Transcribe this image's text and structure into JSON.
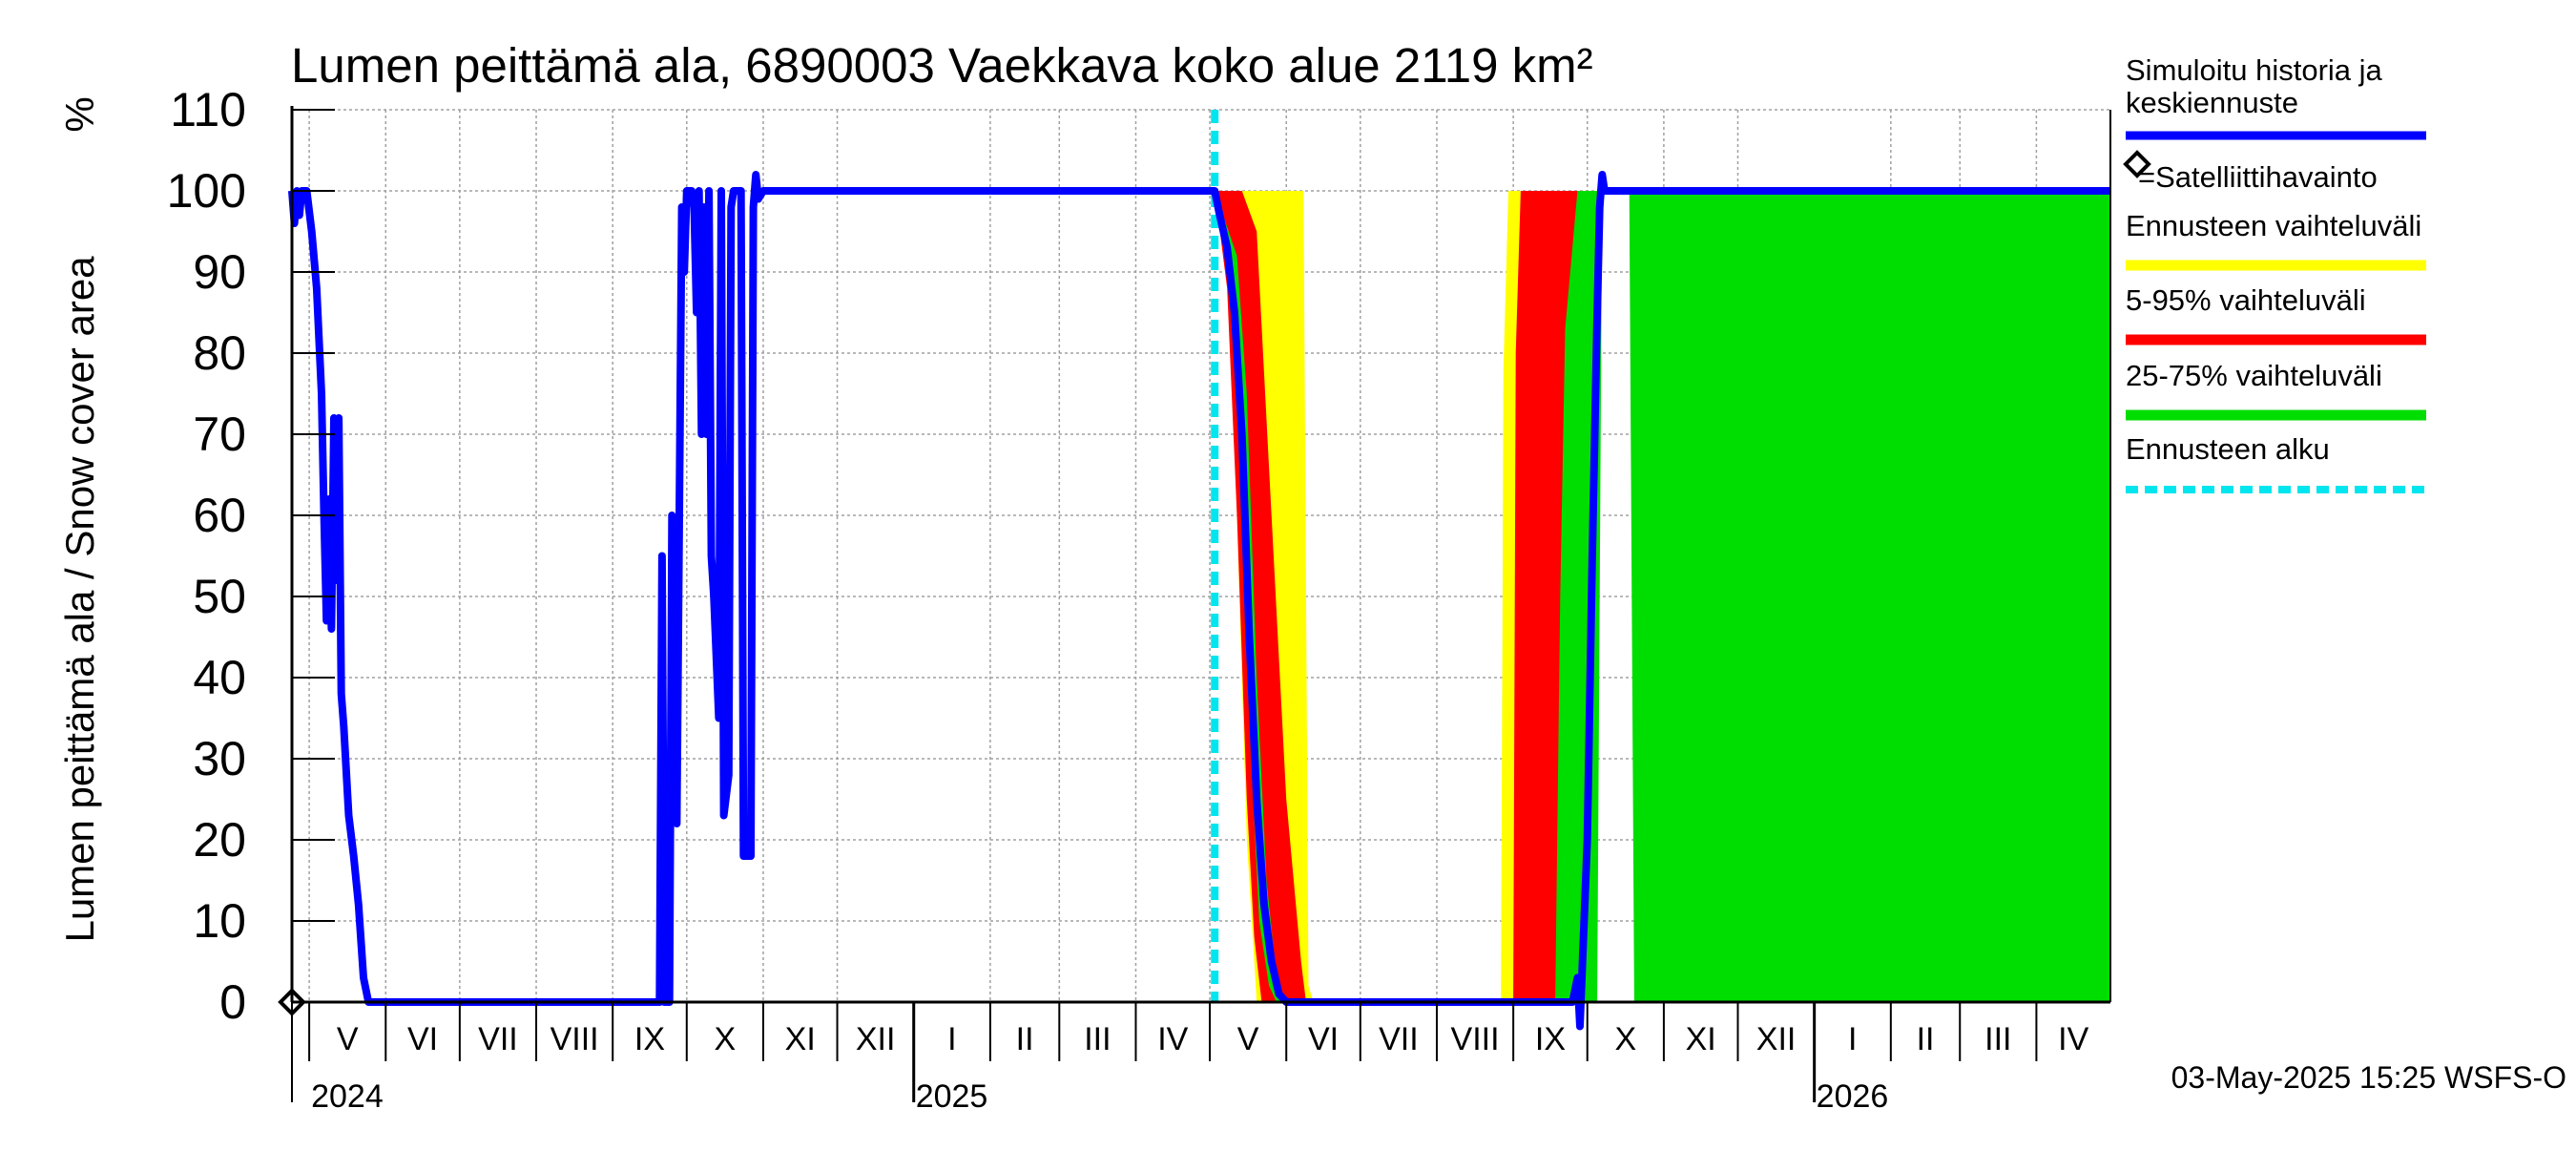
{
  "chart_data": {
    "type": "area",
    "title": "Lumen peittämä ala, 6890003 Vaekkava koko alue 2119 km²",
    "ylabel": "Lumen peittämä ala / Snow cover area",
    "yunit": "%",
    "ylim": [
      0,
      110
    ],
    "yticks": [
      0,
      10,
      20,
      30,
      40,
      50,
      60,
      70,
      80,
      90,
      100,
      110
    ],
    "xlim": [
      "2024-04-24",
      "2026-05-01"
    ],
    "grid": true,
    "month_labels": [
      {
        "label": "V",
        "date": "2024-05-01"
      },
      {
        "label": "VI",
        "date": "2024-06-01"
      },
      {
        "label": "VII",
        "date": "2024-07-01"
      },
      {
        "label": "VIII",
        "date": "2024-08-01"
      },
      {
        "label": "IX",
        "date": "2024-09-01"
      },
      {
        "label": "X",
        "date": "2024-10-01"
      },
      {
        "label": "XI",
        "date": "2024-11-01"
      },
      {
        "label": "XII",
        "date": "2024-12-01"
      },
      {
        "label": "I",
        "date": "2025-01-01"
      },
      {
        "label": "II",
        "date": "2025-02-01"
      },
      {
        "label": "III",
        "date": "2025-03-01"
      },
      {
        "label": "IV",
        "date": "2025-04-01"
      },
      {
        "label": "V",
        "date": "2025-05-01"
      },
      {
        "label": "VI",
        "date": "2025-06-01"
      },
      {
        "label": "VII",
        "date": "2025-07-01"
      },
      {
        "label": "VIII",
        "date": "2025-08-01"
      },
      {
        "label": "IX",
        "date": "2025-09-01"
      },
      {
        "label": "X",
        "date": "2025-10-01"
      },
      {
        "label": "XI",
        "date": "2025-11-01"
      },
      {
        "label": "XII",
        "date": "2025-12-01"
      },
      {
        "label": "I",
        "date": "2026-01-01"
      },
      {
        "label": "II",
        "date": "2026-02-01"
      },
      {
        "label": "III",
        "date": "2026-03-01"
      },
      {
        "label": "IV",
        "date": "2026-04-01"
      }
    ],
    "year_labels": [
      {
        "label": "2024",
        "date": "2024-05-01"
      },
      {
        "label": "2025",
        "date": "2025-01-01"
      },
      {
        "label": "2026",
        "date": "2026-01-01"
      }
    ],
    "forecast_start": "2025-05-03",
    "legend": [
      {
        "label": "Simuloitu historia ja keskiennuste",
        "color": "#0000ff",
        "style": "line"
      },
      {
        "label": "=Satelliittihavainto",
        "color": "#000000",
        "style": "diamond"
      },
      {
        "label": "Ennusteen vaihteluväli",
        "color": "#ffff00",
        "style": "band"
      },
      {
        "label": "5-95% vaihteluväli",
        "color": "#ff0000",
        "style": "band"
      },
      {
        "label": "25-75% vaihteluväli",
        "color": "#00dd00",
        "style": "band"
      },
      {
        "label": "Ennusteen alku",
        "color": "#00e5ee",
        "style": "dashed"
      }
    ],
    "legend_position": "right",
    "footer": "03-May-2025 15:25 WSFS-O",
    "satellite_observations": [
      {
        "date": "2024-04-24",
        "value": 0
      }
    ],
    "series": [
      {
        "name": "Simuloitu historia ja keskiennuste",
        "color": "#0000ff",
        "points": [
          [
            "2024-04-24",
            100
          ],
          [
            "2024-04-25",
            96
          ],
          [
            "2024-04-26",
            100
          ],
          [
            "2024-04-27",
            97
          ],
          [
            "2024-04-28",
            100
          ],
          [
            "2024-04-30",
            100
          ],
          [
            "2024-05-02",
            95
          ],
          [
            "2024-05-04",
            88
          ],
          [
            "2024-05-06",
            75
          ],
          [
            "2024-05-07",
            60
          ],
          [
            "2024-05-08",
            47
          ],
          [
            "2024-05-09",
            62
          ],
          [
            "2024-05-10",
            46
          ],
          [
            "2024-05-11",
            72
          ],
          [
            "2024-05-12",
            52
          ],
          [
            "2024-05-13",
            72
          ],
          [
            "2024-05-14",
            38
          ],
          [
            "2024-05-15",
            34
          ],
          [
            "2024-05-17",
            23
          ],
          [
            "2024-05-19",
            18
          ],
          [
            "2024-05-21",
            12
          ],
          [
            "2024-05-23",
            3
          ],
          [
            "2024-05-25",
            0
          ],
          [
            "2024-09-20",
            0
          ],
          [
            "2024-09-21",
            55
          ],
          [
            "2024-09-22",
            0
          ],
          [
            "2024-09-24",
            0
          ],
          [
            "2024-09-25",
            60
          ],
          [
            "2024-09-26",
            58
          ],
          [
            "2024-09-27",
            22
          ],
          [
            "2024-09-28",
            60
          ],
          [
            "2024-09-29",
            98
          ],
          [
            "2024-09-30",
            90
          ],
          [
            "2024-10-01",
            100
          ],
          [
            "2024-10-03",
            100
          ],
          [
            "2024-10-04",
            98
          ],
          [
            "2024-10-05",
            85
          ],
          [
            "2024-10-06",
            100
          ],
          [
            "2024-10-07",
            70
          ],
          [
            "2024-10-08",
            98
          ],
          [
            "2024-10-09",
            70
          ],
          [
            "2024-10-10",
            100
          ],
          [
            "2024-10-11",
            55
          ],
          [
            "2024-10-12",
            50
          ],
          [
            "2024-10-14",
            35
          ],
          [
            "2024-10-15",
            100
          ],
          [
            "2024-10-16",
            23
          ],
          [
            "2024-10-18",
            28
          ],
          [
            "2024-10-19",
            98
          ],
          [
            "2024-10-20",
            100
          ],
          [
            "2024-10-23",
            100
          ],
          [
            "2024-10-24",
            18
          ],
          [
            "2024-10-27",
            18
          ],
          [
            "2024-10-28",
            98
          ],
          [
            "2024-10-29",
            102
          ],
          [
            "2024-10-30",
            99
          ],
          [
            "2024-11-01",
            100
          ],
          [
            "2025-05-03",
            100
          ],
          [
            "2025-05-05",
            97
          ],
          [
            "2025-05-08",
            93
          ],
          [
            "2025-05-11",
            85
          ],
          [
            "2025-05-14",
            70
          ],
          [
            "2025-05-17",
            45
          ],
          [
            "2025-05-20",
            25
          ],
          [
            "2025-05-23",
            12
          ],
          [
            "2025-05-26",
            5
          ],
          [
            "2025-05-29",
            1
          ],
          [
            "2025-06-01",
            0
          ],
          [
            "2025-09-25",
            0
          ],
          [
            "2025-09-27",
            3
          ],
          [
            "2025-09-28",
            -3
          ],
          [
            "2025-10-01",
            20
          ],
          [
            "2025-10-03",
            55
          ],
          [
            "2025-10-05",
            85
          ],
          [
            "2025-10-06",
            98
          ],
          [
            "2025-10-07",
            102
          ],
          [
            "2025-10-08",
            100
          ],
          [
            "2026-05-01",
            100
          ]
        ]
      },
      {
        "name": "Ennusteen vaihteluväli",
        "color": "#ffff00",
        "upper": [
          [
            "2025-05-03",
            100
          ],
          [
            "2025-06-08",
            100
          ],
          [
            "2025-06-10",
            2
          ],
          [
            "2025-06-12",
            0
          ],
          [
            "2025-08-27",
            0
          ],
          [
            "2025-08-28",
            78
          ],
          [
            "2025-08-30",
            100
          ],
          [
            "2025-11-10",
            100
          ],
          [
            "2025-11-12",
            0
          ],
          [
            "2026-04-02",
            0
          ],
          [
            "2026-04-03",
            100
          ],
          [
            "2026-05-01",
            100
          ]
        ],
        "lower": [
          [
            "2025-05-03",
            100
          ],
          [
            "2025-05-08",
            92
          ],
          [
            "2025-05-12",
            60
          ],
          [
            "2025-05-16",
            20
          ],
          [
            "2025-05-20",
            0
          ],
          [
            "2025-10-04",
            0
          ],
          [
            "2025-10-07",
            100
          ],
          [
            "2026-04-10",
            100
          ],
          [
            "2026-04-20",
            90
          ],
          [
            "2026-04-30",
            50
          ],
          [
            "2026-05-01",
            40
          ]
        ]
      },
      {
        "name": "5-95% vaihteluväli",
        "color": "#ff0000",
        "upper": [
          [
            "2025-05-03",
            100
          ],
          [
            "2025-05-14",
            100
          ],
          [
            "2025-05-20",
            95
          ],
          [
            "2025-05-26",
            60
          ],
          [
            "2025-06-01",
            25
          ],
          [
            "2025-06-07",
            5
          ],
          [
            "2025-06-09",
            0
          ],
          [
            "2025-09-01",
            0
          ],
          [
            "2025-09-02",
            80
          ],
          [
            "2025-09-04",
            100
          ],
          [
            "2025-10-30",
            100
          ],
          [
            "2025-11-01",
            90
          ],
          [
            "2025-11-04",
            0
          ],
          [
            "2026-04-04",
            0
          ],
          [
            "2026-04-05",
            100
          ],
          [
            "2026-05-01",
            100
          ]
        ],
        "lower": [
          [
            "2025-05-03",
            100
          ],
          [
            "2025-05-08",
            88
          ],
          [
            "2025-05-12",
            60
          ],
          [
            "2025-05-16",
            25
          ],
          [
            "2025-05-19",
            8
          ],
          [
            "2025-05-22",
            0
          ],
          [
            "2025-10-02",
            0
          ],
          [
            "2025-10-05",
            100
          ],
          [
            "2026-04-12",
            100
          ],
          [
            "2026-04-22",
            85
          ],
          [
            "2026-05-01",
            60
          ]
        ]
      },
      {
        "name": "25-75% vaihteluväli",
        "color": "#00dd00",
        "upper": [
          [
            "2025-05-03",
            100
          ],
          [
            "2025-05-12",
            92
          ],
          [
            "2025-05-16",
            75
          ],
          [
            "2025-05-20",
            40
          ],
          [
            "2025-05-24",
            15
          ],
          [
            "2025-05-28",
            3
          ],
          [
            "2025-06-01",
            0
          ],
          [
            "2025-09-18",
            0
          ],
          [
            "2025-09-20",
            50
          ],
          [
            "2025-09-22",
            83
          ],
          [
            "2025-09-27",
            100
          ],
          [
            "2025-10-18",
            100
          ],
          [
            "2025-10-20",
            0
          ],
          [
            "2026-05-01",
            0
          ]
        ],
        "lower": [
          [
            "2025-05-03",
            100
          ],
          [
            "2025-05-09",
            90
          ],
          [
            "2025-05-13",
            68
          ],
          [
            "2025-05-17",
            35
          ],
          [
            "2025-05-21",
            10
          ],
          [
            "2025-05-25",
            2
          ],
          [
            "2025-05-28",
            0
          ],
          [
            "2025-10-05",
            0
          ],
          [
            "2025-10-07",
            100
          ],
          [
            "2026-05-01",
            100
          ]
        ]
      }
    ]
  }
}
